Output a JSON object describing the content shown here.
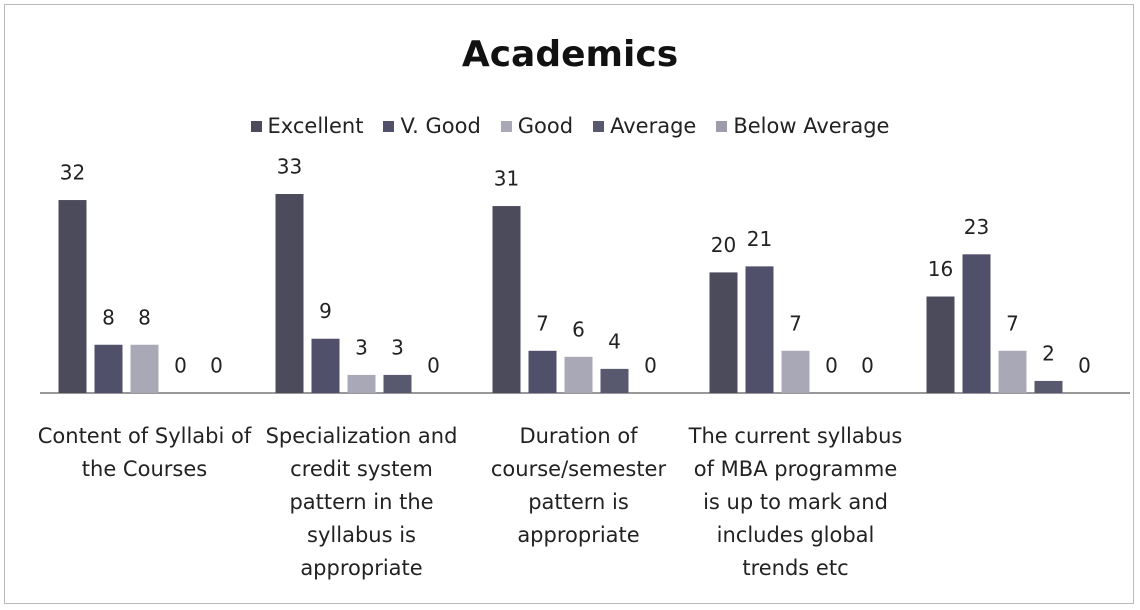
{
  "chart_data": {
    "type": "bar",
    "title": "Academics",
    "categories": [
      "Content of Syllabi of the Courses",
      "Specialization and credit system pattern in the syllabus is appropriate",
      "Duration of course/semester pattern is appropriate",
      "The current syllabus of MBA programme is up to mark and includes global trends etc",
      null
    ],
    "series": [
      {
        "name": "Excellent",
        "color": "#4b4b5c",
        "values": [
          32,
          33,
          31,
          20,
          16
        ]
      },
      {
        "name": "V. Good",
        "color": "#50506a",
        "values": [
          8,
          9,
          7,
          21,
          23
        ]
      },
      {
        "name": "Good",
        "color": "#a8a8b6",
        "values": [
          8,
          3,
          6,
          7,
          7
        ]
      },
      {
        "name": "Average",
        "color": "#58586e",
        "values": [
          0,
          3,
          4,
          0,
          2
        ]
      },
      {
        "name": "Below Average",
        "color": "#9c9caa",
        "values": [
          0,
          0,
          0,
          0,
          0
        ]
      }
    ],
    "legend": "top"
  }
}
